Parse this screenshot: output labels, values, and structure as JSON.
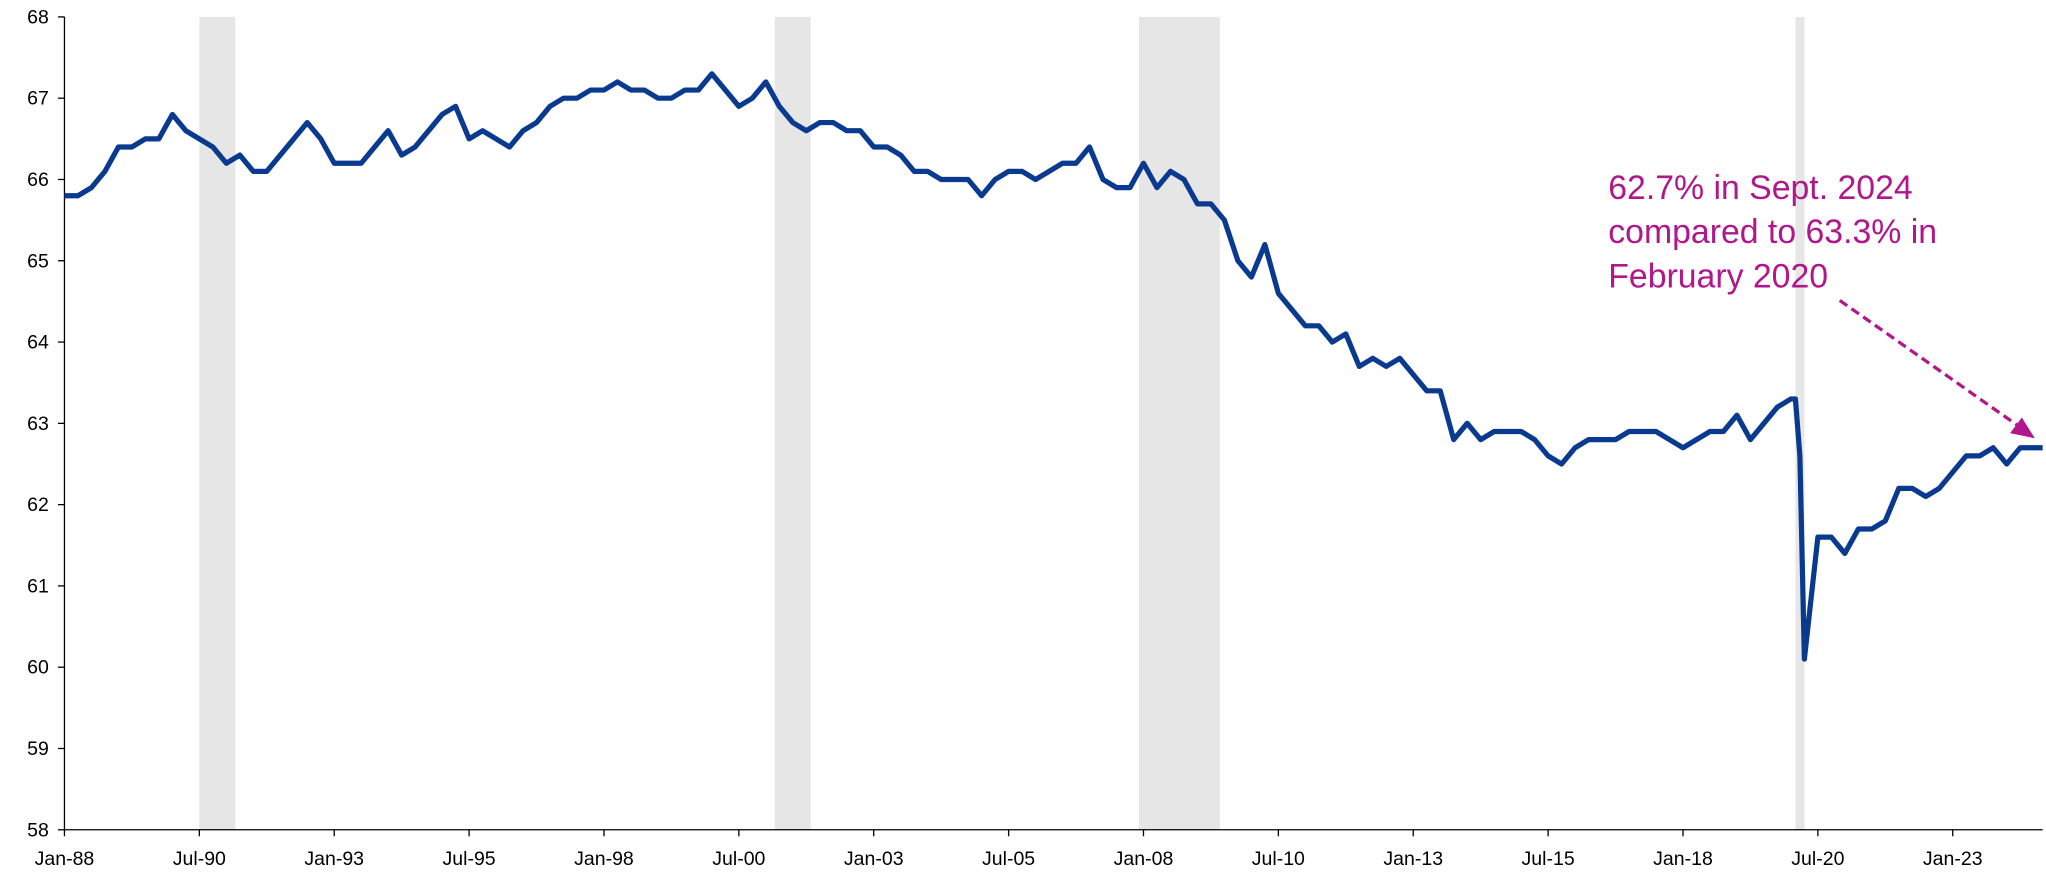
{
  "chart_data": {
    "type": "line",
    "x": [
      "Jan-88",
      "Apr-88",
      "Jul-88",
      "Oct-88",
      "Jan-89",
      "Apr-89",
      "Jul-89",
      "Oct-89",
      "Jan-90",
      "Apr-90",
      "Jul-90",
      "Oct-90",
      "Jan-91",
      "Apr-91",
      "Jul-91",
      "Oct-91",
      "Jan-92",
      "Apr-92",
      "Jul-92",
      "Oct-92",
      "Jan-93",
      "Apr-93",
      "Jul-93",
      "Oct-93",
      "Jan-94",
      "Apr-94",
      "Jul-94",
      "Oct-94",
      "Jan-95",
      "Apr-95",
      "Jul-95",
      "Oct-95",
      "Jan-96",
      "Apr-96",
      "Jul-96",
      "Oct-96",
      "Jan-97",
      "Apr-97",
      "Jul-97",
      "Oct-97",
      "Jan-98",
      "Apr-98",
      "Jul-98",
      "Oct-98",
      "Jan-99",
      "Apr-99",
      "Jul-99",
      "Oct-99",
      "Jan-00",
      "Apr-00",
      "Jul-00",
      "Oct-00",
      "Jan-01",
      "Apr-01",
      "Jul-01",
      "Oct-01",
      "Jan-02",
      "Apr-02",
      "Jul-02",
      "Oct-02",
      "Jan-03",
      "Apr-03",
      "Jul-03",
      "Oct-03",
      "Jan-04",
      "Apr-04",
      "Jul-04",
      "Oct-04",
      "Jan-05",
      "Apr-05",
      "Jul-05",
      "Oct-05",
      "Jan-06",
      "Apr-06",
      "Jul-06",
      "Oct-06",
      "Jan-07",
      "Apr-07",
      "Jul-07",
      "Oct-07",
      "Jan-08",
      "Apr-08",
      "Jul-08",
      "Oct-08",
      "Jan-09",
      "Apr-09",
      "Jul-09",
      "Oct-09",
      "Jan-10",
      "Apr-10",
      "Jul-10",
      "Oct-10",
      "Jan-11",
      "Apr-11",
      "Jul-11",
      "Oct-11",
      "Jan-12",
      "Apr-12",
      "Jul-12",
      "Oct-12",
      "Jan-13",
      "Apr-13",
      "Jul-13",
      "Oct-13",
      "Jan-14",
      "Apr-14",
      "Jul-14",
      "Oct-14",
      "Jan-15",
      "Apr-15",
      "Jul-15",
      "Oct-15",
      "Jan-16",
      "Apr-16",
      "Jul-16",
      "Oct-16",
      "Jan-17",
      "Apr-17",
      "Jul-17",
      "Oct-17",
      "Jan-18",
      "Apr-18",
      "Jul-18",
      "Oct-18",
      "Jan-19",
      "Apr-19",
      "Jul-19",
      "Oct-19",
      "Jan-20",
      "Feb-20",
      "Mar-20",
      "Apr-20",
      "Jul-20",
      "Oct-20",
      "Jan-21",
      "Apr-21",
      "Jul-21",
      "Oct-21",
      "Jan-22",
      "Apr-22",
      "Jul-22",
      "Oct-22",
      "Jan-23",
      "Apr-23",
      "Jul-23",
      "Oct-23",
      "Jan-24",
      "Apr-24",
      "Jul-24",
      "Sep-24"
    ],
    "series": [
      {
        "color": "#0a3a8f",
        "values": [
          65.8,
          65.8,
          65.9,
          66.1,
          66.4,
          66.4,
          66.5,
          66.5,
          66.8,
          66.6,
          66.5,
          66.4,
          66.2,
          66.3,
          66.1,
          66.1,
          66.3,
          66.5,
          66.7,
          66.5,
          66.2,
          66.2,
          66.2,
          66.4,
          66.6,
          66.3,
          66.4,
          66.6,
          66.8,
          66.9,
          66.5,
          66.6,
          66.5,
          66.4,
          66.6,
          66.7,
          66.9,
          67.0,
          67.0,
          67.1,
          67.1,
          67.2,
          67.1,
          67.1,
          67.0,
          67.0,
          67.1,
          67.1,
          67.3,
          67.1,
          66.9,
          67.0,
          67.2,
          66.9,
          66.7,
          66.6,
          66.7,
          66.7,
          66.6,
          66.6,
          66.4,
          66.4,
          66.3,
          66.1,
          66.1,
          66.0,
          66.0,
          66.0,
          65.8,
          66.0,
          66.1,
          66.1,
          66.0,
          66.1,
          66.2,
          66.2,
          66.4,
          66.0,
          65.9,
          65.9,
          66.2,
          65.9,
          66.1,
          66.0,
          65.7,
          65.7,
          65.5,
          65.0,
          64.8,
          65.2,
          64.6,
          64.4,
          64.2,
          64.2,
          64.0,
          64.1,
          63.7,
          63.8,
          63.7,
          63.8,
          63.6,
          63.4,
          63.4,
          62.8,
          63.0,
          62.8,
          62.9,
          62.9,
          62.9,
          62.8,
          62.6,
          62.5,
          62.7,
          62.8,
          62.8,
          62.8,
          62.9,
          62.9,
          62.9,
          62.8,
          62.7,
          62.8,
          62.9,
          62.9,
          63.1,
          62.8,
          63.0,
          63.2,
          63.3,
          63.3,
          62.6,
          60.1,
          61.6,
          61.6,
          61.4,
          61.7,
          61.7,
          61.8,
          62.2,
          62.2,
          62.1,
          62.2,
          62.4,
          62.6,
          62.6,
          62.7,
          62.5,
          62.7,
          62.7,
          62.7
        ]
      }
    ],
    "xlim": [
      "Jan-88",
      "Sep-24"
    ],
    "xticks": [
      "Jan-88",
      "Jul-90",
      "Jan-93",
      "Jul-95",
      "Jan-98",
      "Jul-00",
      "Jan-03",
      "Jul-05",
      "Jan-08",
      "Jul-10",
      "Jan-13",
      "Jul-15",
      "Jan-18",
      "Jul-20",
      "Jan-23"
    ],
    "ylim": [
      58,
      68
    ],
    "yticks": [
      58,
      59,
      60,
      61,
      62,
      63,
      64,
      65,
      66,
      67,
      68
    ],
    "shaded_periods": [
      [
        "Jul-90",
        "Mar-91"
      ],
      [
        "Mar-01",
        "Nov-01"
      ],
      [
        "Dec-07",
        "Jun-09"
      ],
      [
        "Feb-20",
        "Apr-20"
      ]
    ],
    "shade_color": "#e6e6e6",
    "annotation": {
      "lines": [
        "62.7% in Sept. 2024",
        "compared to 63.3% in",
        "February 2020"
      ],
      "color": "#b0178a"
    }
  }
}
